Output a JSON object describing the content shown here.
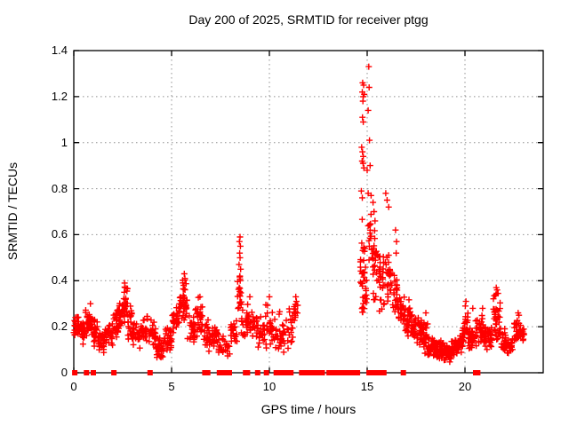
{
  "chart_data": {
    "type": "scatter",
    "title": "Day 200 of 2025, SRMTID for receiver ptgg",
    "xlabel": "GPS time / hours",
    "ylabel": "SRMTID / TECUs",
    "xlim": [
      0,
      24
    ],
    "ylim": [
      0,
      1.4
    ],
    "xtick_values": [
      0,
      5,
      10,
      15,
      20
    ],
    "xtick_labels": [
      "0",
      "5",
      "10",
      "15",
      "20"
    ],
    "ytick_values": [
      0,
      0.2,
      0.4,
      0.6,
      0.8,
      1.0,
      1.2,
      1.4
    ],
    "ytick_labels": [
      "0",
      "0.2",
      "0.4",
      "0.6",
      "0.8",
      "1",
      "1.2",
      "1.4"
    ],
    "grid": true,
    "legend_position": "none",
    "marker": {
      "shape": "plus",
      "size": 7,
      "color": "#ff0000"
    },
    "colors": {
      "marker": "#ff0000",
      "grid": "#909090",
      "axis": "#000000",
      "text": "#000000",
      "background": "#ffffff"
    },
    "points": [
      [
        15.08,
        1.33
      ],
      [
        14.77,
        1.26
      ],
      [
        14.82,
        1.25
      ],
      [
        15.1,
        1.24
      ],
      [
        14.75,
        1.22
      ],
      [
        14.85,
        1.21
      ],
      [
        14.8,
        1.2
      ],
      [
        14.78,
        1.18
      ],
      [
        15.05,
        1.14
      ],
      [
        14.76,
        1.11
      ],
      [
        14.8,
        1.09
      ],
      [
        15.12,
        1.01
      ],
      [
        14.72,
        0.98
      ],
      [
        14.76,
        0.96
      ],
      [
        14.8,
        0.94
      ],
      [
        14.74,
        0.92
      ],
      [
        14.79,
        0.91
      ],
      [
        15.15,
        0.9
      ],
      [
        14.83,
        0.89
      ],
      [
        15.0,
        0.88
      ],
      [
        14.7,
        0.79
      ],
      [
        15.05,
        0.78
      ],
      [
        15.2,
        0.77
      ],
      [
        14.75,
        0.76
      ],
      [
        15.3,
        0.74
      ],
      [
        15.95,
        0.78
      ],
      [
        16.02,
        0.75
      ],
      [
        16.1,
        0.72
      ],
      [
        15.35,
        0.7
      ],
      [
        15.4,
        0.66
      ],
      [
        8.5,
        0.59
      ],
      [
        8.47,
        0.57
      ],
      [
        8.52,
        0.55
      ],
      [
        8.48,
        0.52
      ],
      [
        8.5,
        0.5
      ],
      [
        8.45,
        0.47
      ],
      [
        8.53,
        0.45
      ],
      [
        8.49,
        0.42
      ],
      [
        8.51,
        0.4
      ],
      [
        8.46,
        0.37
      ],
      [
        16.45,
        0.62
      ],
      [
        16.5,
        0.57
      ],
      [
        16.48,
        0.52
      ],
      [
        2.6,
        0.39
      ],
      [
        2.63,
        0.37
      ],
      [
        2.58,
        0.35
      ],
      [
        5.65,
        0.43
      ],
      [
        5.68,
        0.41
      ],
      [
        5.62,
        0.38
      ],
      [
        21.6,
        0.37
      ],
      [
        21.64,
        0.36
      ],
      [
        21.58,
        0.34
      ],
      [
        10.0,
        0.33
      ],
      [
        11.35,
        0.33
      ],
      [
        11.38,
        0.31
      ],
      [
        6.45,
        0.33
      ],
      [
        22.72,
        0.26
      ],
      [
        22.76,
        0.25
      ],
      [
        18.0,
        0.26
      ],
      [
        20.05,
        0.31
      ],
      [
        20.02,
        0.29
      ],
      [
        20.4,
        0.28
      ],
      [
        9.0,
        0.33
      ],
      [
        0.85,
        0.3
      ],
      [
        20.9,
        0.28
      ]
    ],
    "noise_bands": [
      [
        0.0,
        0.3,
        0.14,
        0.27,
        28
      ],
      [
        0.3,
        0.6,
        0.12,
        0.24,
        26
      ],
      [
        0.6,
        0.9,
        0.15,
        0.3,
        28
      ],
      [
        0.9,
        1.2,
        0.1,
        0.26,
        26
      ],
      [
        1.2,
        1.6,
        0.08,
        0.2,
        28
      ],
      [
        1.6,
        2.0,
        0.1,
        0.22,
        26
      ],
      [
        2.0,
        2.3,
        0.15,
        0.28,
        24
      ],
      [
        2.3,
        2.6,
        0.17,
        0.33,
        26
      ],
      [
        2.55,
        2.75,
        0.22,
        0.38,
        16
      ],
      [
        2.75,
        3.0,
        0.14,
        0.3,
        20
      ],
      [
        3.0,
        3.4,
        0.1,
        0.22,
        28
      ],
      [
        3.4,
        3.8,
        0.12,
        0.26,
        28
      ],
      [
        3.8,
        4.2,
        0.1,
        0.24,
        26
      ],
      [
        4.2,
        4.6,
        0.05,
        0.16,
        28
      ],
      [
        4.6,
        5.0,
        0.08,
        0.2,
        28
      ],
      [
        5.0,
        5.4,
        0.15,
        0.3,
        28
      ],
      [
        5.4,
        5.8,
        0.18,
        0.38,
        26
      ],
      [
        5.55,
        5.75,
        0.24,
        0.42,
        14
      ],
      [
        5.8,
        6.2,
        0.12,
        0.26,
        28
      ],
      [
        6.2,
        6.6,
        0.14,
        0.33,
        28
      ],
      [
        6.6,
        7.0,
        0.08,
        0.24,
        24
      ],
      [
        7.0,
        7.4,
        0.1,
        0.22,
        24
      ],
      [
        7.4,
        8.0,
        0.06,
        0.18,
        28
      ],
      [
        8.0,
        8.35,
        0.12,
        0.26,
        22
      ],
      [
        8.35,
        8.55,
        0.2,
        0.46,
        16
      ],
      [
        8.55,
        9.0,
        0.15,
        0.33,
        26
      ],
      [
        9.0,
        9.4,
        0.12,
        0.28,
        22
      ],
      [
        9.4,
        9.8,
        0.08,
        0.25,
        20
      ],
      [
        9.8,
        10.15,
        0.1,
        0.3,
        22
      ],
      [
        10.15,
        10.6,
        0.08,
        0.28,
        20
      ],
      [
        10.6,
        11.0,
        0.08,
        0.25,
        18
      ],
      [
        11.0,
        11.2,
        0.1,
        0.3,
        14
      ],
      [
        11.25,
        11.45,
        0.22,
        0.32,
        12
      ],
      [
        14.65,
        14.9,
        0.18,
        0.72,
        32
      ],
      [
        14.9,
        15.05,
        0.2,
        0.5,
        8
      ],
      [
        15.05,
        15.25,
        0.4,
        0.78,
        14
      ],
      [
        15.25,
        15.55,
        0.3,
        0.66,
        24
      ],
      [
        15.55,
        15.9,
        0.25,
        0.55,
        26
      ],
      [
        15.9,
        16.2,
        0.28,
        0.55,
        24
      ],
      [
        16.2,
        16.55,
        0.25,
        0.48,
        22
      ],
      [
        16.55,
        16.9,
        0.18,
        0.38,
        22
      ],
      [
        16.9,
        17.3,
        0.12,
        0.33,
        30
      ],
      [
        17.3,
        17.7,
        0.1,
        0.26,
        32
      ],
      [
        17.7,
        18.1,
        0.08,
        0.25,
        36
      ],
      [
        18.1,
        18.5,
        0.06,
        0.18,
        36
      ],
      [
        18.5,
        18.9,
        0.05,
        0.15,
        40
      ],
      [
        18.9,
        19.3,
        0.04,
        0.13,
        40
      ],
      [
        19.3,
        19.7,
        0.06,
        0.16,
        36
      ],
      [
        19.7,
        19.95,
        0.08,
        0.2,
        24
      ],
      [
        19.95,
        20.15,
        0.12,
        0.3,
        16
      ],
      [
        20.15,
        20.5,
        0.08,
        0.22,
        30
      ],
      [
        20.5,
        20.9,
        0.1,
        0.26,
        30
      ],
      [
        20.9,
        21.4,
        0.09,
        0.22,
        40
      ],
      [
        21.45,
        21.8,
        0.12,
        0.36,
        36
      ],
      [
        21.8,
        22.1,
        0.08,
        0.2,
        26
      ],
      [
        22.1,
        22.45,
        0.07,
        0.17,
        24
      ],
      [
        22.45,
        22.8,
        0.1,
        0.26,
        24
      ],
      [
        22.8,
        23.05,
        0.13,
        0.22,
        14
      ]
    ],
    "zero_markers": {
      "singles": [
        0.05,
        0.65,
        1.0,
        2.05,
        3.9,
        6.7,
        6.85,
        8.78,
        8.88,
        9.4,
        9.85,
        10.35,
        10.55,
        10.75,
        10.95,
        11.1,
        11.65,
        13.05,
        13.2,
        13.45,
        16.85
      ],
      "ranges": [
        [
          7.4,
          8.0
        ],
        [
          11.85,
          12.75
        ],
        [
          13.6,
          14.55
        ],
        [
          15.05,
          15.2
        ],
        [
          15.3,
          15.5
        ],
        [
          15.6,
          15.9
        ],
        [
          20.5,
          20.7
        ]
      ]
    }
  }
}
